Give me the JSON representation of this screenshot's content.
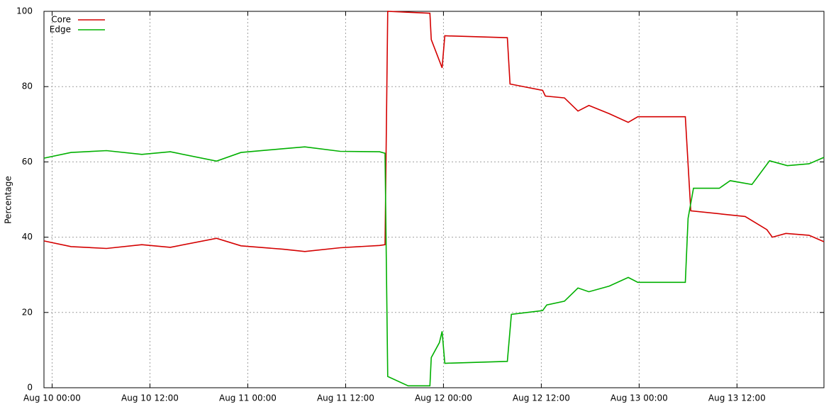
{
  "chart_data": {
    "type": "line",
    "y_label": "Percentage",
    "xlim": [
      "Aug 9 23:00",
      "Aug 13 22:40"
    ],
    "xticks": [
      "Aug 10 00:00",
      "Aug 10 12:00",
      "Aug 11 00:00",
      "Aug 11 12:00",
      "Aug 12 00:00",
      "Aug 12 12:00",
      "Aug 13 00:00",
      "Aug 13 12:00"
    ],
    "ylim": [
      0,
      100
    ],
    "yticks": [
      0,
      20,
      40,
      60,
      80,
      100
    ],
    "grid": true,
    "legend": "top-left",
    "series": [
      {
        "name": "Core",
        "color": "#d40000",
        "x": [
          "Aug 9 23:00",
          "Aug 10 02:20",
          "Aug 10 06:40",
          "Aug 10 11:00",
          "Aug 10 14:30",
          "Aug 10 20:10",
          "Aug 10 23:10",
          "Aug 11 04:20",
          "Aug 11 07:00",
          "Aug 11 11:20",
          "Aug 11 16:10",
          "Aug 11 16:50",
          "Aug 11 17:10",
          "Aug 11 22:20",
          "Aug 11 22:30",
          "Aug 11 23:50",
          "Aug 12 00:10",
          "Aug 12 07:50",
          "Aug 12 08:10",
          "Aug 12 12:10",
          "Aug 12 12:30",
          "Aug 12 14:50",
          "Aug 12 16:30",
          "Aug 12 17:50",
          "Aug 12 20:20",
          "Aug 12 22:40",
          "Aug 12 23:50",
          "Aug 13 05:40",
          "Aug 13 06:20",
          "Aug 13 13:00",
          "Aug 13 15:40",
          "Aug 13 16:20",
          "Aug 13 18:00",
          "Aug 13 20:50",
          "Aug 13 22:40"
        ],
        "values": [
          39,
          37.5,
          37,
          38,
          37.3,
          39.7,
          37.7,
          36.8,
          36.2,
          37.2,
          37.8,
          38,
          100,
          99.5,
          92.5,
          85,
          93.5,
          93,
          80.7,
          79,
          77.5,
          77,
          73.5,
          75,
          72.8,
          70.5,
          72,
          72,
          47,
          45.5,
          42,
          40,
          41,
          40.5,
          38.8
        ]
      },
      {
        "name": "Edge",
        "color": "#00b000",
        "x": [
          "Aug 9 23:00",
          "Aug 10 02:20",
          "Aug 10 06:40",
          "Aug 10 11:00",
          "Aug 10 14:30",
          "Aug 10 20:10",
          "Aug 10 23:10",
          "Aug 11 04:20",
          "Aug 11 07:00",
          "Aug 11 11:20",
          "Aug 11 16:10",
          "Aug 11 16:50",
          "Aug 11 17:10",
          "Aug 11 19:40",
          "Aug 11 22:20",
          "Aug 11 22:30",
          "Aug 11 23:30",
          "Aug 11 23:50",
          "Aug 12 00:10",
          "Aug 12 07:50",
          "Aug 12 08:20",
          "Aug 12 12:10",
          "Aug 12 12:40",
          "Aug 12 14:50",
          "Aug 12 16:30",
          "Aug 12 17:50",
          "Aug 12 20:20",
          "Aug 12 22:40",
          "Aug 12 23:50",
          "Aug 13 05:40",
          "Aug 13 06:00",
          "Aug 13 06:40",
          "Aug 13 09:50",
          "Aug 13 11:10",
          "Aug 13 13:50",
          "Aug 13 16:00",
          "Aug 13 18:10",
          "Aug 13 20:50",
          "Aug 13 22:40"
        ],
        "values": [
          61,
          62.5,
          63,
          62,
          62.7,
          60.2,
          62.5,
          63.5,
          64,
          62.8,
          62.7,
          62.3,
          3,
          0.5,
          0.5,
          8,
          12,
          15,
          6.5,
          7,
          19.5,
          20.5,
          22,
          23,
          26.5,
          25.5,
          27,
          29.3,
          28,
          28,
          45,
          53,
          53,
          55,
          54,
          60.3,
          59,
          59.5,
          61.2
        ]
      }
    ]
  }
}
